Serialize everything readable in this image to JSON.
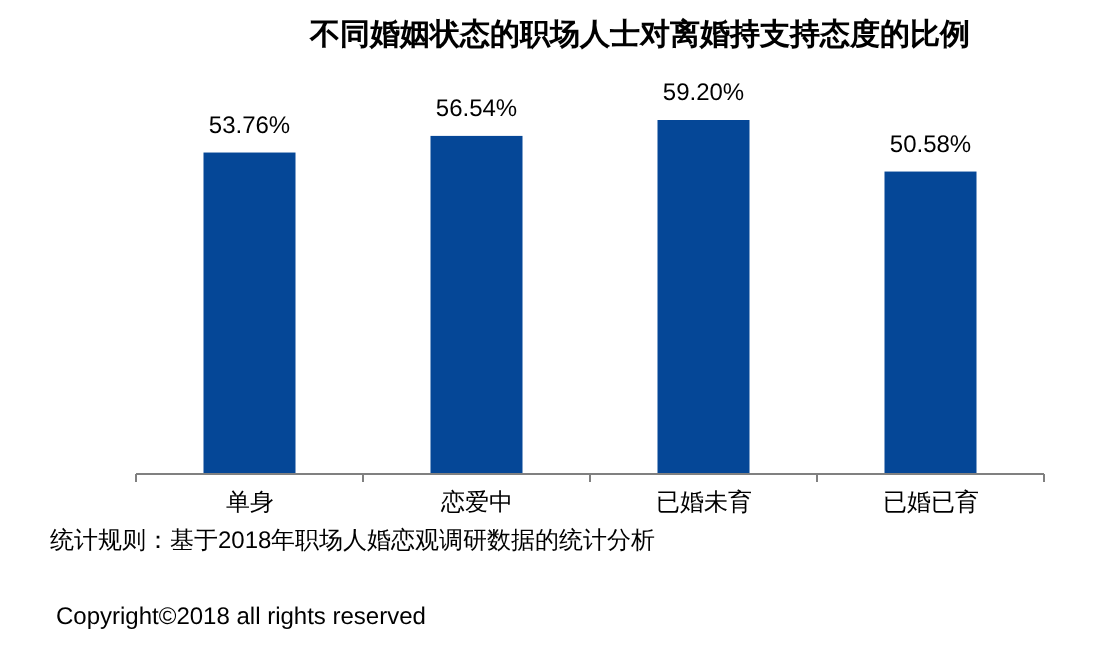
{
  "chart_data": {
    "type": "bar",
    "title": "不同婚姻状态的职场人士对离婚持支持态度的比例",
    "categories": [
      "单身",
      "恋爱中",
      "已婚未育",
      "已婚已育"
    ],
    "values": [
      53.76,
      56.54,
      59.2,
      50.58
    ],
    "value_labels": [
      "53.76%",
      "56.54%",
      "59.20%",
      "50.58%"
    ],
    "color": "#054797",
    "annotations": [
      "统计规则：基于2018年职场人婚恋观调研数据的统计分析",
      "Copyright©2018 all rights reserved"
    ]
  }
}
